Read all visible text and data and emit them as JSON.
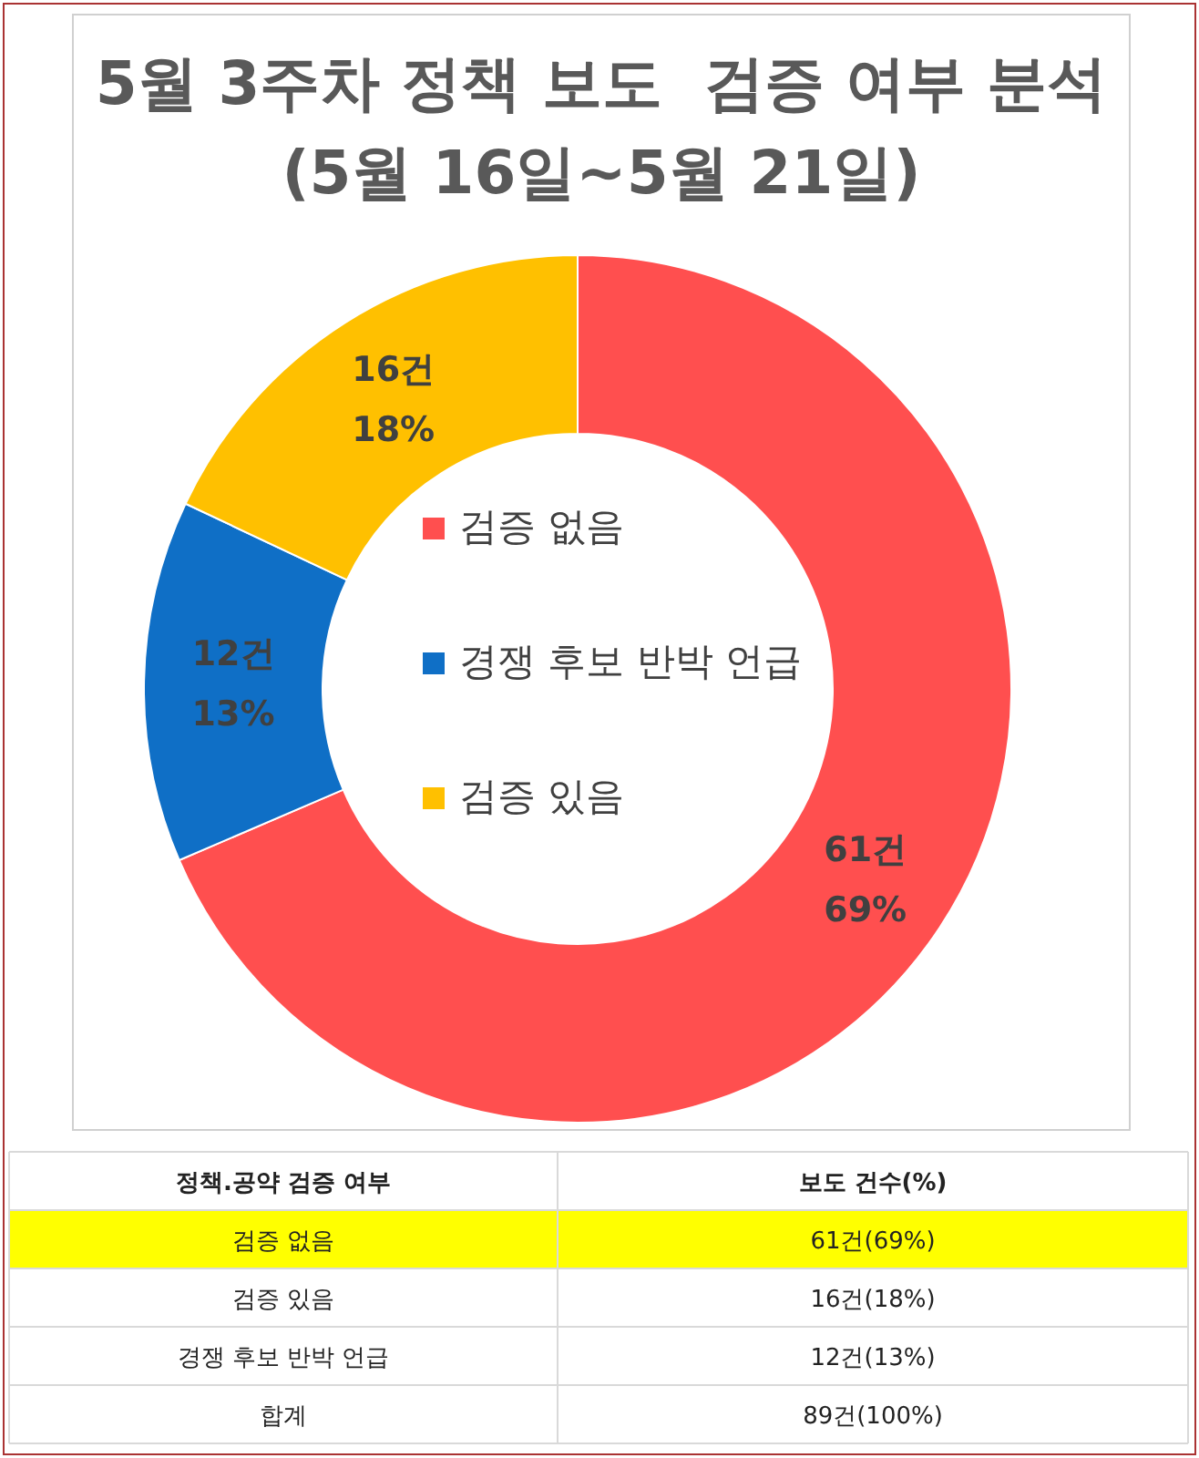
{
  "chart_data": [
    {
      "type": "donut",
      "title": "5월 3주차 정책 보도  검증 여부 분석",
      "subtitle": "(5월 16일~5월 21일)",
      "categories": [
        "검증 없음",
        "경쟁 후보 반박 언급",
        "검증 있음"
      ],
      "values": [
        61,
        12,
        16
      ],
      "colors": [
        "#ff4f4f",
        "#0f6fc6",
        "#ffc000"
      ],
      "value_labels": [
        "61건\n69%",
        "12건\n13%",
        "16건\n18%"
      ],
      "legend": "center"
    },
    {
      "type": "other",
      "categories": [
        "정책.공약 검증 여부",
        "보도 건수(%)"
      ],
      "y_categories": [
        "검증 없음",
        "검증 있음",
        "경쟁 후보 반박 언급",
        "합계"
      ],
      "cell_labels": [
        [
          "61건(69%)"
        ],
        [
          "16건(18%)"
        ],
        [
          "12건(13%)"
        ],
        [
          "89건(100%)"
        ]
      ],
      "colors": [
        "#ffff00",
        "#ffffff",
        "#ffffff",
        "#ffffff"
      ]
    }
  ]
}
